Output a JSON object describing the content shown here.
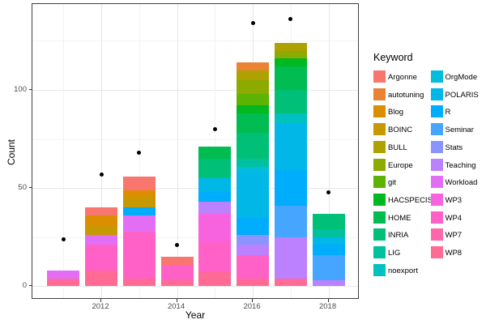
{
  "chart_data": {
    "type": "bar",
    "subtype": "stacked-with-points",
    "title": "",
    "xlabel": "Year",
    "ylabel": "Count",
    "legend_title": "Keyword",
    "x_ticks": [
      2012,
      2014,
      2016,
      2018
    ],
    "x_minor": [
      2011,
      2013,
      2015,
      2017
    ],
    "y_ticks": [
      0,
      50,
      100
    ],
    "y_minor": [
      25,
      75,
      125
    ],
    "ylim": [
      -7,
      144
    ],
    "grid": true,
    "legend_position": "right",
    "keywords": [
      {
        "name": "Argonne",
        "color": "#F8766D"
      },
      {
        "name": "autotuning",
        "color": "#EB8335"
      },
      {
        "name": "Blog",
        "color": "#DB8E00"
      },
      {
        "name": "BOINC",
        "color": "#C79800"
      },
      {
        "name": "BULL",
        "color": "#AEA200"
      },
      {
        "name": "Europe",
        "color": "#8CAA00"
      },
      {
        "name": "git",
        "color": "#5CB300"
      },
      {
        "name": "HACSPECIS",
        "color": "#00B81F"
      },
      {
        "name": "HOME",
        "color": "#00BC51"
      },
      {
        "name": "INRIA",
        "color": "#00C078"
      },
      {
        "name": "LIG",
        "color": "#00C19F"
      },
      {
        "name": "noexport",
        "color": "#00C0C0"
      },
      {
        "name": "OrgMode",
        "color": "#00BDDE"
      },
      {
        "name": "POLARIS",
        "color": "#00B7E8"
      },
      {
        "name": "R",
        "color": "#00ACFC"
      },
      {
        "name": "Seminar",
        "color": "#45A5FF"
      },
      {
        "name": "Stats",
        "color": "#8B93FF"
      },
      {
        "name": "Teaching",
        "color": "#BC81FF"
      },
      {
        "name": "Workload",
        "color": "#E36EF6"
      },
      {
        "name": "WP3",
        "color": "#F763DF"
      },
      {
        "name": "WP4",
        "color": "#FF61C7"
      },
      {
        "name": "WP7",
        "color": "#FF67AC"
      },
      {
        "name": "WP8",
        "color": "#FF6B94"
      }
    ],
    "bars": [
      {
        "year": 2011,
        "total": 8,
        "segments": [
          {
            "keyword": "WP8",
            "value": 4
          },
          {
            "keyword": "Workload",
            "value": 4
          }
        ]
      },
      {
        "year": 2012,
        "total": 40,
        "segments": [
          {
            "keyword": "WP8",
            "value": 8
          },
          {
            "keyword": "WP4",
            "value": 13
          },
          {
            "keyword": "Workload",
            "value": 5
          },
          {
            "keyword": "BOINC",
            "value": 5
          },
          {
            "keyword": "Blog",
            "value": 5
          },
          {
            "keyword": "Argonne",
            "value": 4
          }
        ]
      },
      {
        "year": 2013,
        "total": 56,
        "segments": [
          {
            "keyword": "WP8",
            "value": 4
          },
          {
            "keyword": "WP4",
            "value": 24
          },
          {
            "keyword": "Workload",
            "value": 8
          },
          {
            "keyword": "R",
            "value": 4
          },
          {
            "keyword": "BOINC",
            "value": 5
          },
          {
            "keyword": "Blog",
            "value": 4
          },
          {
            "keyword": "Argonne",
            "value": 7
          }
        ]
      },
      {
        "year": 2014,
        "total": 15,
        "segments": [
          {
            "keyword": "WP8",
            "value": 3
          },
          {
            "keyword": "WP4",
            "value": 8
          },
          {
            "keyword": "Argonne",
            "value": 4
          }
        ]
      },
      {
        "year": 2015,
        "total": 71,
        "segments": [
          {
            "keyword": "WP8",
            "value": 7
          },
          {
            "keyword": "WP4",
            "value": 16
          },
          {
            "keyword": "WP3",
            "value": 14
          },
          {
            "keyword": "Teaching",
            "value": 6
          },
          {
            "keyword": "R",
            "value": 5
          },
          {
            "keyword": "POLARIS",
            "value": 7
          },
          {
            "keyword": "INRIA",
            "value": 10
          },
          {
            "keyword": "HOME",
            "value": 6
          }
        ]
      },
      {
        "year": 2016,
        "total": 114,
        "segments": [
          {
            "keyword": "WP8",
            "value": 4
          },
          {
            "keyword": "WP4",
            "value": 12
          },
          {
            "keyword": "Teaching",
            "value": 5
          },
          {
            "keyword": "Stats",
            "value": 5
          },
          {
            "keyword": "R",
            "value": 9
          },
          {
            "keyword": "POLARIS",
            "value": 23
          },
          {
            "keyword": "OrgMode",
            "value": 3
          },
          {
            "keyword": "LIG",
            "value": 4
          },
          {
            "keyword": "INRIA",
            "value": 13
          },
          {
            "keyword": "HOME",
            "value": 10
          },
          {
            "keyword": "HACSPECIS",
            "value": 4
          },
          {
            "keyword": "git",
            "value": 6
          },
          {
            "keyword": "Europe",
            "value": 7
          },
          {
            "keyword": "BULL",
            "value": 5
          },
          {
            "keyword": "autotuning",
            "value": 4
          }
        ]
      },
      {
        "year": 2017,
        "total": 124,
        "segments": [
          {
            "keyword": "WP8",
            "value": 4
          },
          {
            "keyword": "Teaching",
            "value": 21
          },
          {
            "keyword": "Seminar",
            "value": 16
          },
          {
            "keyword": "R",
            "value": 18
          },
          {
            "keyword": "POLARIS",
            "value": 24
          },
          {
            "keyword": "noexport",
            "value": 5
          },
          {
            "keyword": "INRIA",
            "value": 12
          },
          {
            "keyword": "HOME",
            "value": 12
          },
          {
            "keyword": "HACSPECIS",
            "value": 4
          },
          {
            "keyword": "Europe",
            "value": 4
          },
          {
            "keyword": "BULL",
            "value": 4
          }
        ]
      },
      {
        "year": 2018,
        "total": 37,
        "segments": [
          {
            "keyword": "Teaching",
            "value": 3
          },
          {
            "keyword": "Seminar",
            "value": 13
          },
          {
            "keyword": "R",
            "value": 5
          },
          {
            "keyword": "POLARIS",
            "value": 4
          },
          {
            "keyword": "LIG",
            "value": 4
          },
          {
            "keyword": "INRIA",
            "value": 8
          }
        ]
      }
    ],
    "points": [
      {
        "year": 2011,
        "value": 24
      },
      {
        "year": 2012,
        "value": 57
      },
      {
        "year": 2013,
        "value": 68
      },
      {
        "year": 2014,
        "value": 21
      },
      {
        "year": 2015,
        "value": 80
      },
      {
        "year": 2016,
        "value": 134
      },
      {
        "year": 2017,
        "value": 136
      },
      {
        "year": 2018,
        "value": 48
      }
    ]
  }
}
